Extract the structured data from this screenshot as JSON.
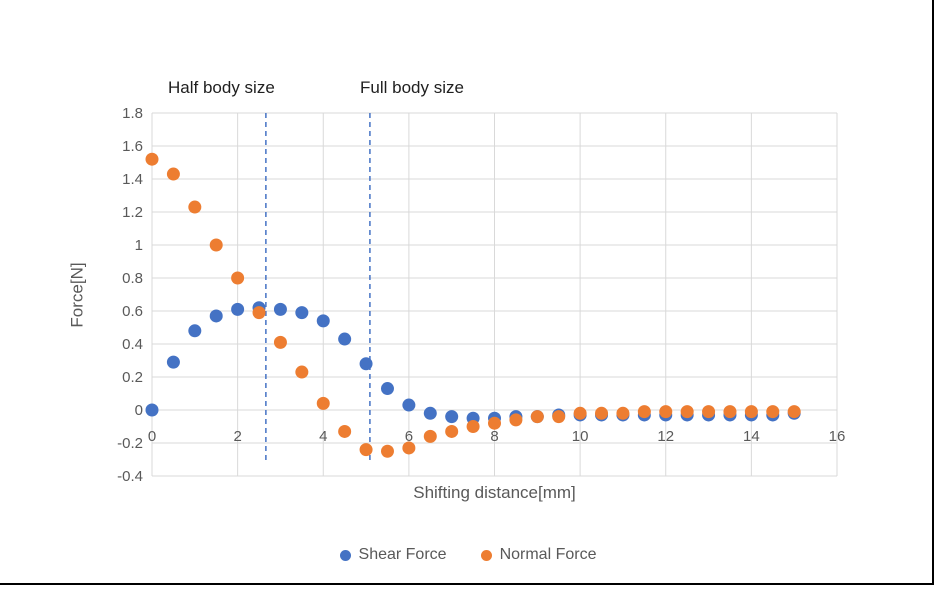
{
  "chart_data": {
    "type": "scatter",
    "title": "",
    "xlabel": "Shifting distance[mm]",
    "ylabel": "Force[N]",
    "xlim": [
      0,
      16
    ],
    "ylim": [
      -0.4,
      1.8
    ],
    "grid": true,
    "legend_position": "bottom",
    "xticks": [
      0,
      2,
      4,
      6,
      8,
      10,
      12,
      14,
      16
    ],
    "yticks": [
      {
        "value": 1.8,
        "label": "1.8"
      },
      {
        "value": 1.6,
        "label": "1.6"
      },
      {
        "value": 1.4,
        "label": "1.4"
      },
      {
        "value": 1.2,
        "label": "1.2"
      },
      {
        "value": 1.0,
        "label": "1"
      },
      {
        "value": 0.8,
        "label": "0.8"
      },
      {
        "value": 0.6,
        "label": "0.6"
      },
      {
        "value": 0.4,
        "label": "0.4"
      },
      {
        "value": 0.2,
        "label": "0.2"
      },
      {
        "value": 0.0,
        "label": "0"
      },
      {
        "value": -0.2,
        "label": "-0.2"
      },
      {
        "value": -0.4,
        "label": "-0.4"
      }
    ],
    "x": [
      0,
      0.5,
      1,
      1.5,
      2,
      2.5,
      3,
      3.5,
      4,
      4.5,
      5,
      5.5,
      6,
      6.5,
      7,
      7.5,
      8,
      8.5,
      9,
      9.5,
      10,
      10.5,
      11,
      11.5,
      12,
      12.5,
      13,
      13.5,
      14,
      14.5,
      15
    ],
    "series": [
      {
        "name": "Shear Force",
        "color": "#4472C4",
        "values": [
          0,
          0.29,
          0.48,
          0.57,
          0.61,
          0.62,
          0.61,
          0.59,
          0.54,
          0.43,
          0.28,
          0.13,
          0.03,
          -0.02,
          -0.04,
          -0.05,
          -0.05,
          -0.04,
          -0.04,
          -0.03,
          -0.03,
          -0.03,
          -0.03,
          -0.03,
          -0.03,
          -0.03,
          -0.03,
          -0.03,
          -0.03,
          -0.03,
          -0.02
        ]
      },
      {
        "name": "Normal Force",
        "color": "#ED7D31",
        "values": [
          1.52,
          1.43,
          1.23,
          1.0,
          0.8,
          0.59,
          0.41,
          0.23,
          0.04,
          -0.13,
          -0.24,
          -0.25,
          -0.23,
          -0.16,
          -0.13,
          -0.1,
          -0.08,
          -0.06,
          -0.04,
          -0.04,
          -0.02,
          -0.02,
          -0.02,
          -0.01,
          -0.01,
          -0.01,
          -0.01,
          -0.01,
          -0.01,
          -0.01,
          -0.01
        ]
      }
    ],
    "vlines": [
      {
        "x": 2.66,
        "label": "Half body size",
        "color": "#4472C4",
        "style": "dashed"
      },
      {
        "x": 5.09,
        "label": "Full body size",
        "color": "#4472C4",
        "style": "dashed"
      }
    ],
    "colors": {
      "gridline": "#D9D9D9",
      "tick_text": "#595959",
      "annotation_text": "#1f1f1f"
    },
    "marker_radius_px": 6.5
  }
}
